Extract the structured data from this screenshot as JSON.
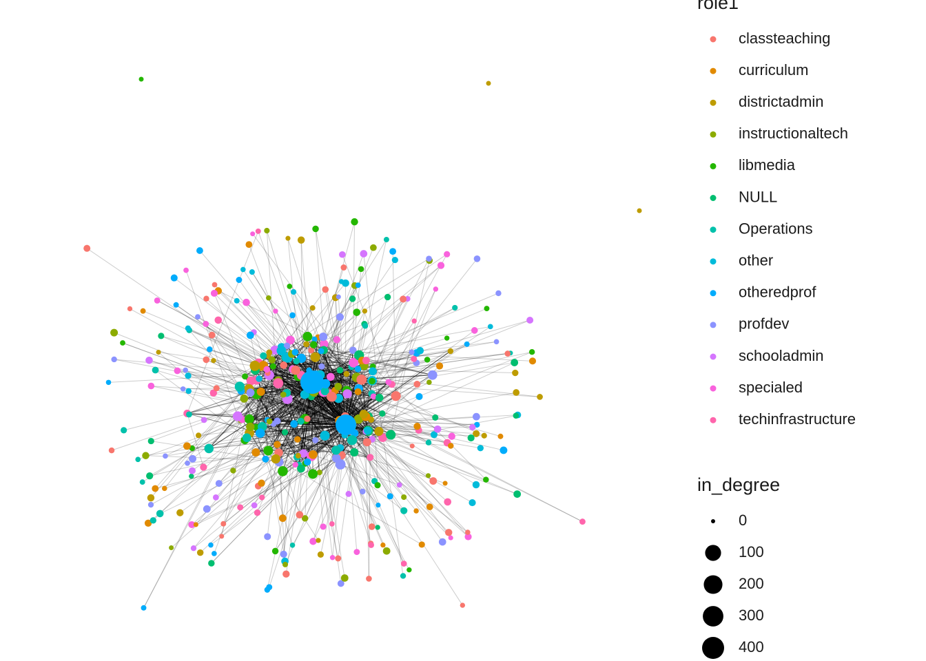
{
  "chart_data": {
    "type": "network",
    "legend_color": {
      "title": "role1",
      "categories": [
        "classteaching",
        "curriculum",
        "districtadmin",
        "instructionaltech",
        "libmedia",
        "NULL",
        "Operations",
        "other",
        "otheredprof",
        "profdev",
        "schooladmin",
        "specialed",
        "techinfrastructure"
      ],
      "colors": [
        "#F8766D",
        "#E18A00",
        "#BE9C00",
        "#8CAB00",
        "#24B700",
        "#00BE70",
        "#00C1AB",
        "#00BBDA",
        "#00ACFC",
        "#8B93FF",
        "#D575FE",
        "#F962DD",
        "#FF65AC"
      ]
    },
    "legend_size": {
      "title": "in_degree",
      "values": [
        0,
        100,
        200,
        300,
        400
      ],
      "color": "#000000"
    }
  }
}
